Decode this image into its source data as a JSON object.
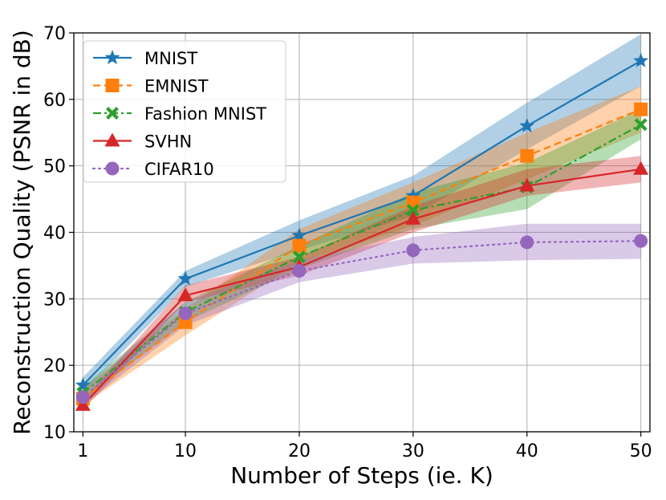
{
  "chart_data": {
    "type": "line",
    "title": "",
    "xlabel": "Number of Steps (ie. K)",
    "ylabel": "Reconstruction Quality (PSNR in dB)",
    "x": [
      1,
      10,
      20,
      30,
      40,
      50
    ],
    "xticks": [
      1,
      10,
      20,
      30,
      40,
      50
    ],
    "yticks": [
      10,
      20,
      30,
      40,
      50,
      60,
      70
    ],
    "xlim": [
      0.2,
      50.8
    ],
    "ylim": [
      10,
      70
    ],
    "grid": true,
    "legend_position": "top-left",
    "series": [
      {
        "name": "MNIST",
        "color": "#1f77b4",
        "linestyle": "solid",
        "marker": "star",
        "values": [
          17.0,
          33.0,
          39.5,
          45.5,
          56.0,
          65.8
        ],
        "band_low": [
          15.8,
          31.8,
          37.3,
          42.5,
          52.5,
          62.0
        ],
        "band_high": [
          18.2,
          34.2,
          41.8,
          48.5,
          59.5,
          69.8
        ]
      },
      {
        "name": "EMNIST",
        "color": "#ff7f0e",
        "linestyle": "dashed",
        "marker": "square",
        "values": [
          15.0,
          26.5,
          38.0,
          44.5,
          51.5,
          58.5
        ],
        "band_low": [
          14.0,
          24.5,
          35.5,
          41.0,
          48.0,
          55.0
        ],
        "band_high": [
          16.5,
          28.5,
          40.5,
          47.5,
          55.0,
          62.0
        ]
      },
      {
        "name": "Fashion MNIST",
        "color": "#2ca02c",
        "linestyle": "dashdot",
        "marker": "x",
        "values": [
          15.8,
          28.0,
          36.3,
          43.3,
          46.8,
          56.2
        ],
        "band_low": [
          14.8,
          26.5,
          34.5,
          40.5,
          43.5,
          54.0
        ],
        "band_high": [
          16.8,
          29.5,
          38.0,
          46.0,
          50.5,
          58.5
        ]
      },
      {
        "name": "SVHN",
        "color": "#d62728",
        "linestyle": "solid",
        "marker": "triangle",
        "values": [
          14.0,
          30.5,
          34.8,
          42.0,
          47.0,
          49.5
        ],
        "band_low": [
          13.3,
          29.5,
          33.5,
          40.0,
          45.5,
          47.5
        ],
        "band_high": [
          14.8,
          32.0,
          36.3,
          44.0,
          49.5,
          51.5
        ]
      },
      {
        "name": "CIFAR10",
        "color": "#9467bd",
        "linestyle": "dotted",
        "marker": "circle",
        "values": [
          15.2,
          27.8,
          34.2,
          37.3,
          38.5,
          38.7
        ],
        "band_low": [
          14.0,
          26.0,
          32.5,
          35.3,
          35.8,
          36.0
        ],
        "band_high": [
          16.3,
          29.5,
          35.8,
          39.3,
          41.3,
          41.3
        ]
      }
    ]
  }
}
